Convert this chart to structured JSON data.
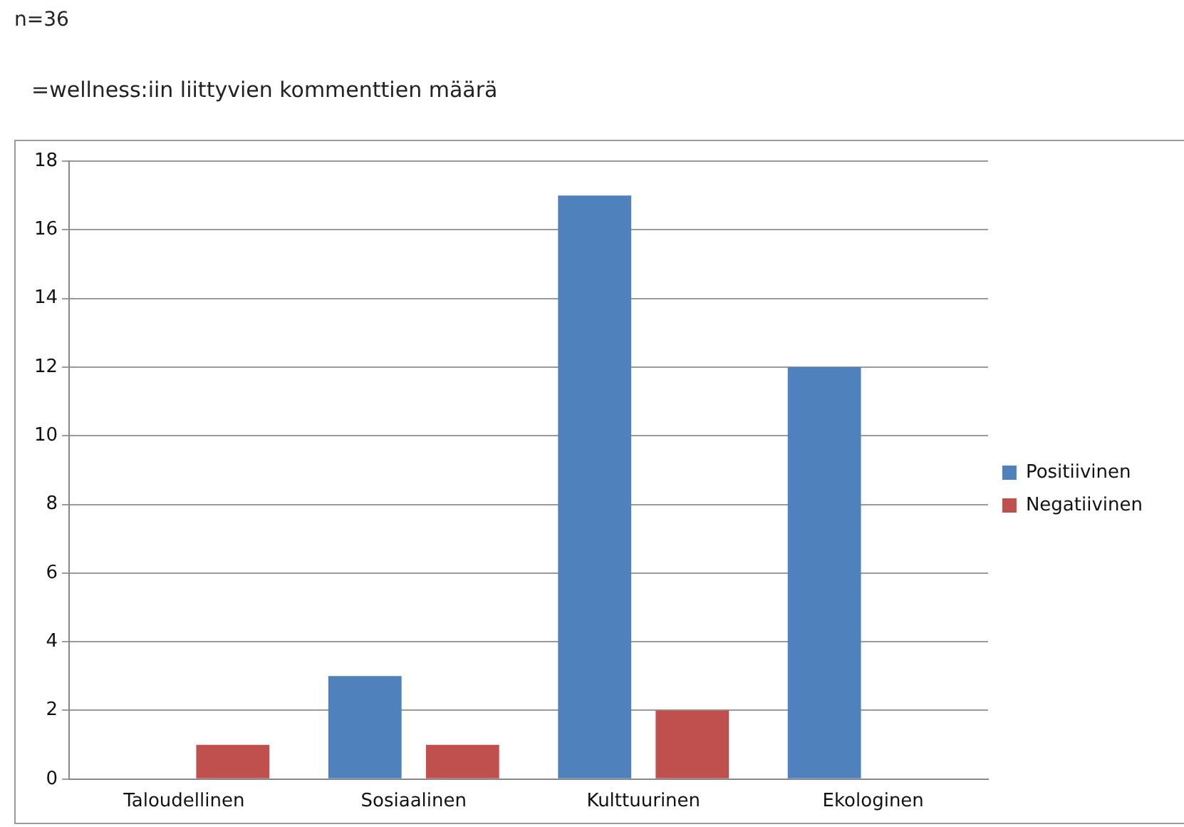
{
  "chart_data": {
    "type": "bar",
    "title": "n=36",
    "subtitle": "=wellness:iin liittyvien kommenttien määrä",
    "categories": [
      "Taloudellinen",
      "Sosiaalinen",
      "Kulttuurinen",
      "Ekologinen"
    ],
    "series": [
      {
        "name": "Positiivinen",
        "color": "#4f81bd",
        "values": [
          0,
          3,
          17,
          12
        ]
      },
      {
        "name": "Negatiivinen",
        "color": "#c0504d",
        "values": [
          1,
          1,
          2,
          0
        ]
      }
    ],
    "ylim": [
      0,
      18
    ],
    "yticks": [
      0,
      2,
      4,
      6,
      8,
      10,
      12,
      14,
      16,
      18
    ],
    "grid": "y",
    "legend": "right"
  }
}
